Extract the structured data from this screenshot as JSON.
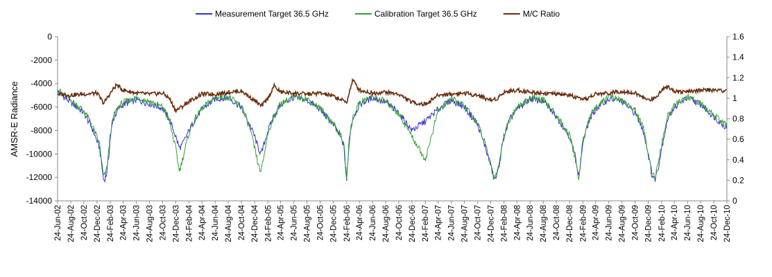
{
  "chart_data": {
    "type": "line",
    "title": "",
    "ylabel": "AMSR-E Radiance",
    "y2label": "",
    "legend_position": "top",
    "grid": false,
    "ylim": [
      -14000,
      0
    ],
    "yticks": [
      0,
      -2000,
      -4000,
      -6000,
      -8000,
      -10000,
      -12000,
      -14000
    ],
    "ytick_labels": [
      "0",
      "-2000",
      "-4000",
      "-6000",
      "-8000",
      "-10000",
      "-12000",
      "-14000"
    ],
    "y2lim": [
      0,
      1.6
    ],
    "y2ticks": [
      1.6,
      1.4,
      1.2,
      1,
      0.8,
      0.6,
      0.4,
      0.2,
      0
    ],
    "y2tick_labels": [
      "1.6",
      "1.4",
      "1.2",
      "1",
      "0.8",
      "0.6",
      "0.4",
      "0.2",
      "0"
    ],
    "xticks": [
      "24-Jun-02",
      "24-Aug-02",
      "24-Oct-02",
      "24-Dec-02",
      "24-Feb-03",
      "24-Apr-03",
      "24-Jun-03",
      "24-Aug-03",
      "24-Oct-03",
      "24-Dec-03",
      "24-Feb-04",
      "24-Apr-04",
      "24-Jun-04",
      "24-Aug-04",
      "24-Oct-04",
      "24-Dec-04",
      "24-Feb-05",
      "24-Apr-05",
      "24-Jun-05",
      "24-Aug-05",
      "24-Oct-05",
      "24-Dec-05",
      "24-Feb-06",
      "24-Apr-06",
      "24-Jun-06",
      "24-Aug-06",
      "24-Oct-06",
      "24-Dec-06",
      "24-Feb-07",
      "24-Apr-07",
      "24-Jun-07",
      "24-Aug-07",
      "24-Oct-07",
      "24-Dec-07",
      "24-Feb-08",
      "24-Apr-08",
      "24-Jun-08",
      "24-Aug-08",
      "24-Oct-08",
      "24-Dec-08",
      "24-Feb-09",
      "24-Apr-09",
      "24-Jun-09",
      "24-Aug-09",
      "24-Oct-09",
      "24-Dec-09",
      "24-Feb-10",
      "24-Apr-10",
      "24-Jun-10",
      "24-Aug-10",
      "24-Oct-10",
      "24-Dec-10"
    ],
    "series": [
      {
        "name": "Measurement Target 36.5 GHz",
        "color": "#3333cc",
        "axis": "left",
        "points": [
          [
            "2002-06-24",
            -4700
          ],
          [
            "2002-08-24",
            -5600
          ],
          [
            "2002-10-24",
            -6500
          ],
          [
            "2002-12-01",
            -7800
          ],
          [
            "2003-01-05",
            -9500
          ],
          [
            "2003-01-15",
            -11000
          ],
          [
            "2003-01-24",
            -12300
          ],
          [
            "2003-02-05",
            -11800
          ],
          [
            "2003-02-15",
            -10500
          ],
          [
            "2003-02-24",
            -8500
          ],
          [
            "2003-03-10",
            -7000
          ],
          [
            "2003-04-01",
            -6200
          ],
          [
            "2003-04-24",
            -5800
          ],
          [
            "2003-06-24",
            -5400
          ],
          [
            "2003-08-24",
            -5700
          ],
          [
            "2003-10-24",
            -6100
          ],
          [
            "2003-11-24",
            -7000
          ],
          [
            "2003-12-24",
            -8500
          ],
          [
            "2004-01-10",
            -9500
          ],
          [
            "2004-01-24",
            -9200
          ],
          [
            "2004-02-24",
            -8000
          ],
          [
            "2004-03-24",
            -7000
          ],
          [
            "2004-04-24",
            -6200
          ],
          [
            "2004-06-24",
            -5300
          ],
          [
            "2004-08-24",
            -5200
          ],
          [
            "2004-10-24",
            -6000
          ],
          [
            "2004-12-01",
            -7500
          ],
          [
            "2004-12-24",
            -8500
          ],
          [
            "2005-01-10",
            -9500
          ],
          [
            "2005-01-24",
            -10000
          ],
          [
            "2005-02-05",
            -9200
          ],
          [
            "2005-02-24",
            -8000
          ],
          [
            "2005-03-24",
            -6800
          ],
          [
            "2005-04-24",
            -5800
          ],
          [
            "2005-06-24",
            -5200
          ],
          [
            "2005-08-24",
            -5400
          ],
          [
            "2005-10-24",
            -6200
          ],
          [
            "2005-12-24",
            -7500
          ],
          [
            "2006-01-24",
            -8500
          ],
          [
            "2006-02-10",
            -9200
          ],
          [
            "2006-02-24",
            -12300
          ],
          [
            "2006-03-10",
            -8500
          ],
          [
            "2006-03-24",
            -7000
          ],
          [
            "2006-04-24",
            -5800
          ],
          [
            "2006-06-24",
            -5200
          ],
          [
            "2006-08-24",
            -5600
          ],
          [
            "2006-10-24",
            -6500
          ],
          [
            "2006-12-24",
            -8000
          ],
          [
            "2007-02-24",
            -7200
          ],
          [
            "2007-04-24",
            -6200
          ],
          [
            "2007-06-24",
            -5400
          ],
          [
            "2007-08-24",
            -6000
          ],
          [
            "2007-10-24",
            -7500
          ],
          [
            "2007-12-01",
            -9500
          ],
          [
            "2007-12-24",
            -11000
          ],
          [
            "2008-01-10",
            -12200
          ],
          [
            "2008-01-24",
            -11800
          ],
          [
            "2008-02-10",
            -10000
          ],
          [
            "2008-02-24",
            -8500
          ],
          [
            "2008-03-24",
            -7000
          ],
          [
            "2008-04-24",
            -6200
          ],
          [
            "2008-06-24",
            -5300
          ],
          [
            "2008-08-24",
            -5500
          ],
          [
            "2008-10-24",
            -6800
          ],
          [
            "2008-12-24",
            -8500
          ],
          [
            "2009-01-24",
            -10500
          ],
          [
            "2009-02-05",
            -12000
          ],
          [
            "2009-02-24",
            -9000
          ],
          [
            "2009-03-24",
            -7200
          ],
          [
            "2009-04-24",
            -6200
          ],
          [
            "2009-06-24",
            -5300
          ],
          [
            "2009-08-24",
            -5500
          ],
          [
            "2009-10-24",
            -6500
          ],
          [
            "2009-12-01",
            -8000
          ],
          [
            "2009-12-24",
            -10000
          ],
          [
            "2010-01-10",
            -11800
          ],
          [
            "2010-01-24",
            -12200
          ],
          [
            "2010-02-10",
            -11000
          ],
          [
            "2010-02-24",
            -9500
          ],
          [
            "2010-03-24",
            -7000
          ],
          [
            "2010-04-24",
            -6000
          ],
          [
            "2010-06-24",
            -5200
          ],
          [
            "2010-08-24",
            -5800
          ],
          [
            "2010-10-24",
            -6800
          ],
          [
            "2010-12-24",
            -7800
          ]
        ]
      },
      {
        "name": "Calibration Target 36.5 GHz",
        "color": "#33a033",
        "axis": "left",
        "points": [
          [
            "2002-06-24",
            -4500
          ],
          [
            "2002-08-24",
            -5400
          ],
          [
            "2002-10-24",
            -6300
          ],
          [
            "2002-12-01",
            -7500
          ],
          [
            "2003-01-05",
            -9200
          ],
          [
            "2003-01-15",
            -10800
          ],
          [
            "2003-01-24",
            -12000
          ],
          [
            "2003-02-05",
            -11500
          ],
          [
            "2003-02-15",
            -10000
          ],
          [
            "2003-02-24",
            -8200
          ],
          [
            "2003-03-10",
            -6800
          ],
          [
            "2003-04-01",
            -6000
          ],
          [
            "2003-04-24",
            -5600
          ],
          [
            "2003-06-24",
            -5200
          ],
          [
            "2003-08-24",
            -5500
          ],
          [
            "2003-10-24",
            -6000
          ],
          [
            "2003-11-24",
            -7200
          ],
          [
            "2003-12-24",
            -9500
          ],
          [
            "2004-01-10",
            -11500
          ],
          [
            "2004-01-24",
            -10500
          ],
          [
            "2004-02-24",
            -8200
          ],
          [
            "2004-03-24",
            -7000
          ],
          [
            "2004-04-24",
            -6100
          ],
          [
            "2004-06-24",
            -5200
          ],
          [
            "2004-08-24",
            -5100
          ],
          [
            "2004-10-24",
            -6000
          ],
          [
            "2004-12-01",
            -7800
          ],
          [
            "2004-12-24",
            -9500
          ],
          [
            "2005-01-10",
            -11000
          ],
          [
            "2005-01-24",
            -11500
          ],
          [
            "2005-02-05",
            -10200
          ],
          [
            "2005-02-24",
            -8200
          ],
          [
            "2005-03-24",
            -6700
          ],
          [
            "2005-04-24",
            -5700
          ],
          [
            "2005-06-24",
            -5100
          ],
          [
            "2005-08-24",
            -5300
          ],
          [
            "2005-10-24",
            -6100
          ],
          [
            "2005-12-24",
            -7400
          ],
          [
            "2006-01-24",
            -8300
          ],
          [
            "2006-02-10",
            -9000
          ],
          [
            "2006-02-24",
            -12000
          ],
          [
            "2006-03-10",
            -8300
          ],
          [
            "2006-03-24",
            -6900
          ],
          [
            "2006-04-24",
            -5600
          ],
          [
            "2006-06-24",
            -5100
          ],
          [
            "2006-08-24",
            -5500
          ],
          [
            "2006-10-24",
            -6600
          ],
          [
            "2006-12-24",
            -8500
          ],
          [
            "2007-02-24",
            -10500
          ],
          [
            "2007-04-24",
            -6300
          ],
          [
            "2007-06-24",
            -5300
          ],
          [
            "2007-08-24",
            -5900
          ],
          [
            "2007-10-24",
            -7300
          ],
          [
            "2007-12-01",
            -9300
          ],
          [
            "2007-12-24",
            -10800
          ],
          [
            "2008-01-10",
            -12000
          ],
          [
            "2008-01-24",
            -11500
          ],
          [
            "2008-02-10",
            -9800
          ],
          [
            "2008-02-24",
            -8300
          ],
          [
            "2008-03-24",
            -6900
          ],
          [
            "2008-04-24",
            -6100
          ],
          [
            "2008-06-24",
            -5200
          ],
          [
            "2008-08-24",
            -5400
          ],
          [
            "2008-10-24",
            -6700
          ],
          [
            "2008-12-24",
            -8400
          ],
          [
            "2009-01-24",
            -10800
          ],
          [
            "2009-02-05",
            -12200
          ],
          [
            "2009-02-24",
            -8800
          ],
          [
            "2009-03-24",
            -7000
          ],
          [
            "2009-04-24",
            -6000
          ],
          [
            "2009-06-24",
            -5100
          ],
          [
            "2009-08-24",
            -5400
          ],
          [
            "2009-10-24",
            -6300
          ],
          [
            "2009-12-01",
            -7800
          ],
          [
            "2009-12-24",
            -9800
          ],
          [
            "2010-01-10",
            -11500
          ],
          [
            "2010-01-24",
            -12000
          ],
          [
            "2010-02-10",
            -10800
          ],
          [
            "2010-02-24",
            -9200
          ],
          [
            "2010-03-24",
            -6800
          ],
          [
            "2010-04-24",
            -5900
          ],
          [
            "2010-06-24",
            -5100
          ],
          [
            "2010-08-24",
            -5700
          ],
          [
            "2010-10-24",
            -6700
          ],
          [
            "2010-12-24",
            -7600
          ]
        ]
      },
      {
        "name": "M/C Ratio",
        "color": "#6b2f0e",
        "axis": "right",
        "points": [
          [
            "2002-06-24",
            1.04
          ],
          [
            "2002-08-24",
            1.03
          ],
          [
            "2002-10-24",
            1.04
          ],
          [
            "2002-12-24",
            1.05
          ],
          [
            "2003-01-24",
            0.95
          ],
          [
            "2003-02-24",
            1.05
          ],
          [
            "2003-03-24",
            1.13
          ],
          [
            "2003-04-24",
            1.08
          ],
          [
            "2003-06-24",
            1.05
          ],
          [
            "2003-08-24",
            1.04
          ],
          [
            "2003-10-24",
            1.05
          ],
          [
            "2003-11-24",
            1.0
          ],
          [
            "2003-12-24",
            0.88
          ],
          [
            "2004-01-24",
            0.92
          ],
          [
            "2004-02-24",
            0.97
          ],
          [
            "2004-04-24",
            1.04
          ],
          [
            "2004-06-24",
            1.04
          ],
          [
            "2004-08-24",
            1.06
          ],
          [
            "2004-10-24",
            1.07
          ],
          [
            "2004-12-24",
            0.98
          ],
          [
            "2005-01-24",
            0.92
          ],
          [
            "2005-02-24",
            1.0
          ],
          [
            "2005-03-24",
            1.12
          ],
          [
            "2005-04-24",
            1.06
          ],
          [
            "2005-06-24",
            1.05
          ],
          [
            "2005-08-24",
            1.04
          ],
          [
            "2005-10-24",
            1.05
          ],
          [
            "2005-12-24",
            1.02
          ],
          [
            "2006-02-24",
            0.96
          ],
          [
            "2006-03-24",
            1.18
          ],
          [
            "2006-04-24",
            1.08
          ],
          [
            "2006-06-24",
            1.05
          ],
          [
            "2006-08-24",
            1.06
          ],
          [
            "2006-10-24",
            1.04
          ],
          [
            "2006-12-24",
            0.96
          ],
          [
            "2007-02-24",
            0.94
          ],
          [
            "2007-04-24",
            1.03
          ],
          [
            "2007-06-24",
            1.04
          ],
          [
            "2007-08-24",
            1.05
          ],
          [
            "2007-10-24",
            1.03
          ],
          [
            "2007-12-24",
            0.98
          ],
          [
            "2008-01-24",
            1.0
          ],
          [
            "2008-02-24",
            1.06
          ],
          [
            "2008-04-24",
            1.08
          ],
          [
            "2008-06-24",
            1.06
          ],
          [
            "2008-08-24",
            1.05
          ],
          [
            "2008-10-24",
            1.04
          ],
          [
            "2008-12-24",
            1.03
          ],
          [
            "2009-02-24",
            0.98
          ],
          [
            "2009-04-24",
            1.04
          ],
          [
            "2009-06-24",
            1.05
          ],
          [
            "2009-08-24",
            1.07
          ],
          [
            "2009-10-24",
            1.05
          ],
          [
            "2009-12-24",
            0.98
          ],
          [
            "2010-01-24",
            1.0
          ],
          [
            "2010-02-24",
            1.08
          ],
          [
            "2010-03-24",
            1.12
          ],
          [
            "2010-04-24",
            1.07
          ],
          [
            "2010-06-24",
            1.06
          ],
          [
            "2010-08-24",
            1.08
          ],
          [
            "2010-10-24",
            1.08
          ],
          [
            "2010-12-24",
            1.07
          ]
        ]
      }
    ]
  }
}
